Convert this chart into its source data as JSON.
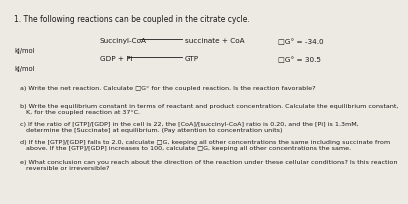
{
  "title": "1. The following reactions can be coupled in the citrate cycle.",
  "reaction1_left": "Succinyl-CoA",
  "reaction1_right": "succinate + CoA",
  "reaction1_dG": "□G° = -34.0",
  "reaction1_unit": "kJ/mol",
  "reaction2_left": "GDP + Pi",
  "reaction2_right": "GTP",
  "reaction2_dG": "□G° = 30.5",
  "reaction2_unit": "kJ/mol",
  "questions": [
    "a) Write the net reaction. Calculate □G° for the coupled reaction. Is the reaction favorable?",
    "b) Write the equilibrium constant in terms of reactant and product concentration. Calculate the equilibrium constant,\n   K, for the coupled reaction at 37°C.",
    "c) If the ratio of [GTP]/[GDP] in the cell is 22, the [CoA]/[succinyl-CoA] ratio is 0.20, and the [Pi] is 1.3mM,\n   determine the [Succinate] at equilibrium. (Pay attention to concentration units)",
    "d) If the [GTP]/[GDP] falls to 2.0, calculate □G, keeping all other concentrations the same including succinate from\n   above. If the [GTP]/[GDP] increases to 100, calculate □G, keeping all other concentrations the same.",
    "e) What conclusion can you reach about the direction of the reaction under these cellular conditions? Is this reaction\n   reversible or irreversible?"
  ],
  "bg_color": "#edeae4",
  "text_color": "#1a1a1a",
  "title_fs": 5.5,
  "reaction_fs": 5.2,
  "unit_fs": 4.8,
  "question_fs": 4.6
}
